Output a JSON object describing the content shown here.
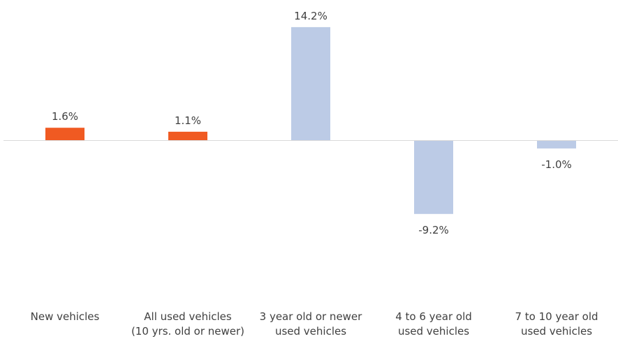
{
  "chart_data": {
    "type": "bar",
    "title": "",
    "xlabel": "",
    "ylabel": "",
    "ylim": [
      -25,
      20
    ],
    "grid": false,
    "legend": "none",
    "categories": [
      [
        "New vehicles"
      ],
      [
        "All used vehicles",
        "(10 yrs. old or newer)"
      ],
      [
        "3 year old or newer",
        "used vehicles"
      ],
      [
        "4 to 6 year old",
        "used vehicles"
      ],
      [
        "7 to 10 year old",
        "used vehicles"
      ]
    ],
    "values": [
      1.6,
      1.1,
      14.2,
      -9.2,
      -1.0
    ],
    "data_labels": [
      "1.6%",
      "1.1%",
      "14.2%",
      "-9.2%",
      "-1.0%"
    ],
    "colors": [
      "#f05a22",
      "#f05a22",
      "#bccbe6",
      "#bccbe6",
      "#bccbe6"
    ],
    "axis_color": "#d9d9d9",
    "text_color": "#404040"
  }
}
